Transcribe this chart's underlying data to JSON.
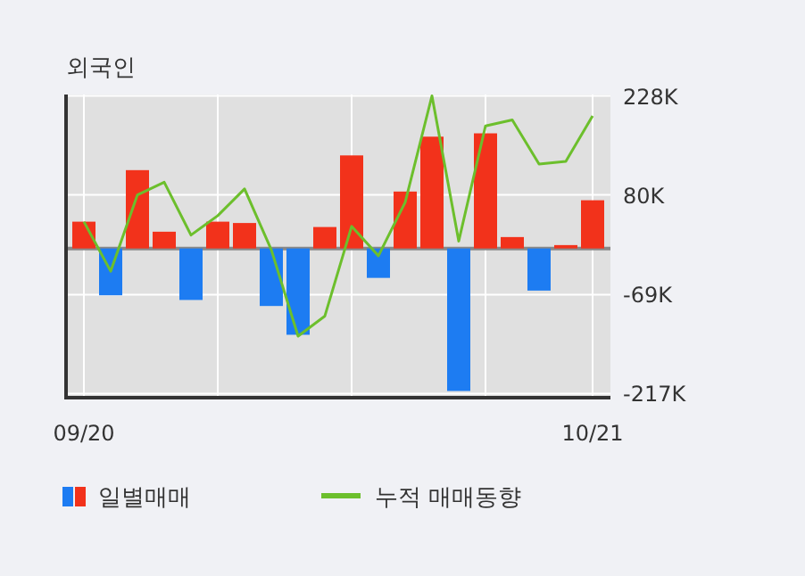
{
  "chart_data": {
    "type": "bar",
    "title": "외국인",
    "categories": [
      "09/20",
      null,
      null,
      null,
      null,
      null,
      null,
      null,
      null,
      null,
      null,
      null,
      null,
      null,
      null,
      null,
      null,
      null,
      null,
      "10/21"
    ],
    "series": [
      {
        "name": "일별매매",
        "colors": [
          "#f2321b",
          "#1d7cf2",
          "#f2321b",
          "#f2321b",
          "#1d7cf2",
          "#f2321b",
          "#f2321b",
          "#1d7cf2",
          "#1d7cf2",
          "#f2321b",
          "#f2321b",
          "#1d7cf2",
          "#f2321b",
          "#f2321b",
          "#1d7cf2",
          "#f2321b",
          "#f2321b",
          "#1d7cf2",
          "#f2321b",
          "#f2321b"
        ],
        "values": [
          40,
          -70,
          117,
          25,
          -77,
          40,
          38,
          -86,
          -129,
          32,
          139,
          -44,
          85,
          167,
          -213,
          172,
          17,
          -63,
          5,
          72
        ]
      },
      {
        "name": "누적 매매동향",
        "type": "line",
        "color": "#6cbf2c",
        "values": [
          40,
          -34,
          80,
          99,
          20,
          49,
          89,
          -2,
          -131,
          -101,
          33,
          -11,
          69,
          228,
          11,
          183,
          192,
          126,
          130,
          198
        ]
      }
    ],
    "ylim": [
      -223,
      230
    ],
    "yticks": [
      {
        "value": 228,
        "label": "228K"
      },
      {
        "value": 80,
        "label": "80K"
      },
      {
        "value": -69,
        "label": "-69K"
      },
      {
        "value": -217,
        "label": "-217K"
      }
    ],
    "grid": true,
    "legend": "bottom"
  }
}
